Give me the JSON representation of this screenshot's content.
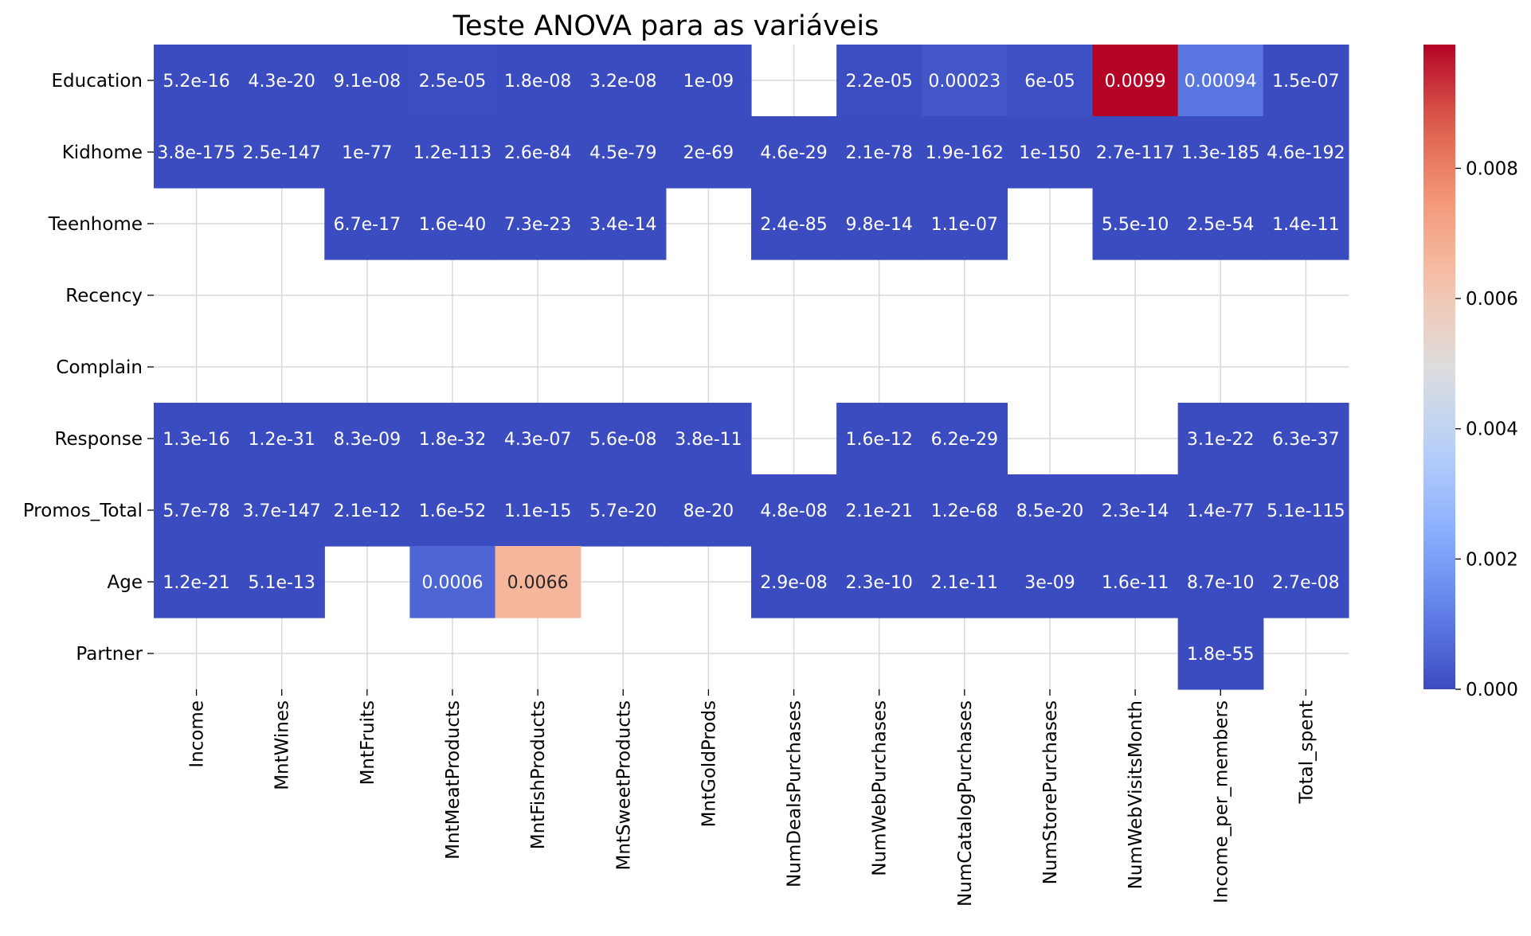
{
  "chart_data": {
    "type": "heatmap",
    "title": "Teste ANOVA para as  variáveis",
    "colormap": "coolwarm",
    "x_categories": [
      "Income",
      "MntWines",
      "MntFruits",
      "MntMeatProducts",
      "MntFishProducts",
      "MntSweetProducts",
      "MntGoldProds",
      "NumDealsPurchases",
      "NumWebPurchases",
      "NumCatalogPurchases",
      "NumStorePurchases",
      "NumWebVisitsMonth",
      "Income_per_members",
      "Total_spent"
    ],
    "y_categories": [
      "Education",
      "Kidhome",
      "Teenhome",
      "Recency",
      "Complain",
      "Response",
      "Promos_Total",
      "Age",
      "Partner"
    ],
    "values": [
      [
        5.2e-16,
        4.3e-20,
        9.1e-08,
        2.5e-05,
        1.8e-08,
        3.2e-08,
        1e-09,
        null,
        2.2e-05,
        0.00023,
        6e-05,
        0.0099,
        0.00094,
        1.5e-07
      ],
      [
        3.8e-175,
        2.5e-147,
        1e-77,
        1.2e-113,
        2.6e-84,
        4.5e-79,
        2e-69,
        4.6e-29,
        2.1e-78,
        1.9e-162,
        1e-150,
        2.7e-117,
        1.3e-185,
        4.6e-192
      ],
      [
        null,
        null,
        6.7e-17,
        1.6e-40,
        7.3e-23,
        3.4e-14,
        null,
        2.4e-85,
        9.8e-14,
        1.1e-07,
        null,
        5.5e-10,
        2.5e-54,
        1.4e-11
      ],
      [
        null,
        null,
        null,
        null,
        null,
        null,
        null,
        null,
        null,
        null,
        null,
        null,
        null,
        null
      ],
      [
        null,
        null,
        null,
        null,
        null,
        null,
        null,
        null,
        null,
        null,
        null,
        null,
        null,
        null
      ],
      [
        1.3e-16,
        1.2e-31,
        8.3e-09,
        1.8e-32,
        4.3e-07,
        5.6e-08,
        3.8e-11,
        null,
        1.6e-12,
        6.2e-29,
        null,
        null,
        3.1e-22,
        6.3e-37
      ],
      [
        5.7e-78,
        3.7e-147,
        2.1e-12,
        1.6e-52,
        1.1e-15,
        5.7e-20,
        8e-20,
        4.8e-08,
        2.1e-21,
        1.2e-68,
        8.5e-20,
        2.3e-14,
        1.4e-77,
        5.1e-115
      ],
      [
        1.2e-21,
        5.1e-13,
        null,
        0.0006,
        0.0066,
        null,
        null,
        2.9e-08,
        2.3e-10,
        2.1e-11,
        3e-09,
        1.6e-11,
        8.7e-10,
        2.7e-08
      ],
      [
        null,
        null,
        null,
        null,
        null,
        null,
        null,
        null,
        null,
        null,
        null,
        null,
        1.8e-55,
        null
      ]
    ],
    "annotations": [
      [
        "5.2e-16",
        "4.3e-20",
        "9.1e-08",
        "2.5e-05",
        "1.8e-08",
        "3.2e-08",
        "1e-09",
        "",
        "2.2e-05",
        "0.00023",
        "6e-05",
        "0.0099",
        "0.00094",
        "1.5e-07"
      ],
      [
        "3.8e-175",
        "2.5e-147",
        "1e-77",
        "1.2e-113",
        "2.6e-84",
        "4.5e-79",
        "2e-69",
        "4.6e-29",
        "2.1e-78",
        "1.9e-162",
        "1e-150",
        "2.7e-117",
        "1.3e-185",
        "4.6e-192"
      ],
      [
        "",
        "",
        "6.7e-17",
        "1.6e-40",
        "7.3e-23",
        "3.4e-14",
        "",
        "2.4e-85",
        "9.8e-14",
        "1.1e-07",
        "",
        "5.5e-10",
        "2.5e-54",
        "1.4e-11"
      ],
      [
        "",
        "",
        "",
        "",
        "",
        "",
        "",
        "",
        "",
        "",
        "",
        "",
        "",
        ""
      ],
      [
        "",
        "",
        "",
        "",
        "",
        "",
        "",
        "",
        "",
        "",
        "",
        "",
        "",
        ""
      ],
      [
        "1.3e-16",
        "1.2e-31",
        "8.3e-09",
        "1.8e-32",
        "4.3e-07",
        "5.6e-08",
        "3.8e-11",
        "",
        "1.6e-12",
        "6.2e-29",
        "",
        "",
        "3.1e-22",
        "6.3e-37"
      ],
      [
        "5.7e-78",
        "3.7e-147",
        "2.1e-12",
        "1.6e-52",
        "1.1e-15",
        "5.7e-20",
        "8e-20",
        "4.8e-08",
        "2.1e-21",
        "1.2e-68",
        "8.5e-20",
        "2.3e-14",
        "1.4e-77",
        "5.1e-115"
      ],
      [
        "1.2e-21",
        "5.1e-13",
        "",
        "0.0006",
        "0.0066",
        "",
        "",
        "2.9e-08",
        "2.3e-10",
        "2.1e-11",
        "3e-09",
        "1.6e-11",
        "8.7e-10",
        "2.7e-08"
      ],
      [
        "",
        "",
        "",
        "",
        "",
        "",
        "",
        "",
        "",
        "",
        "",
        "",
        "1.8e-55",
        ""
      ]
    ],
    "colorbar": {
      "vmin": 0,
      "vmax": 0.0099,
      "ticks": [
        0.0,
        0.002,
        0.004,
        0.006,
        0.008
      ],
      "tick_labels": [
        "0.000",
        "0.002",
        "0.004",
        "0.006",
        "0.008"
      ]
    },
    "grid": true,
    "grid_color": "#d9d9d9",
    "missing_cells": "blank"
  }
}
